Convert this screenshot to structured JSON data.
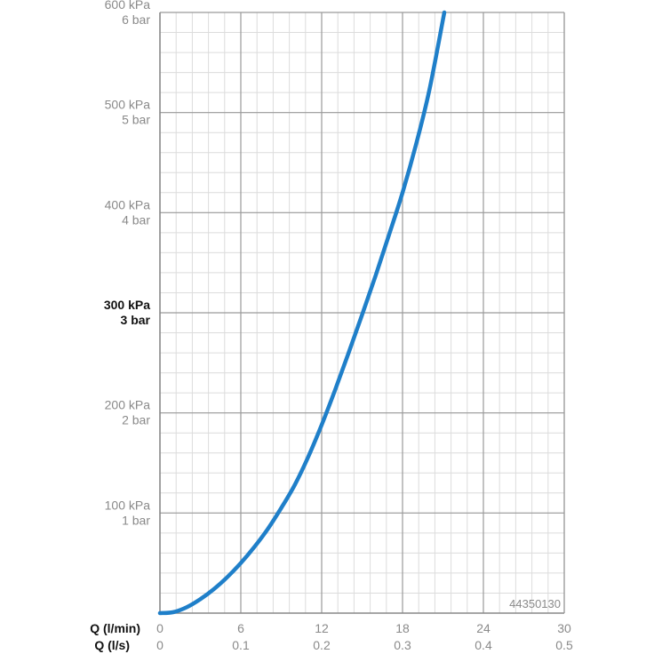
{
  "chart_data": {
    "type": "line",
    "x_axis_primary": {
      "label": "Q (l/min)",
      "ticks": [
        "0",
        "6",
        "12",
        "18",
        "24",
        "30"
      ],
      "range": [
        0,
        30
      ]
    },
    "x_axis_secondary": {
      "label": "Q (l/s)",
      "ticks": [
        "0",
        "0.1",
        "0.2",
        "0.3",
        "0.4",
        "0.5"
      ],
      "range": [
        0,
        0.5
      ]
    },
    "y_axis": {
      "range": [
        0,
        600
      ],
      "unit": "kPa",
      "ticks": [
        {
          "value": 600,
          "kpa": "600 kPa",
          "bar": "6 bar",
          "bold": false
        },
        {
          "value": 500,
          "kpa": "500 kPa",
          "bar": "5 bar",
          "bold": false
        },
        {
          "value": 400,
          "kpa": "400 kPa",
          "bar": "4 bar",
          "bold": false
        },
        {
          "value": 300,
          "kpa": "300 kPa",
          "bar": "3 bar",
          "bold": true
        },
        {
          "value": 200,
          "kpa": "200 kPa",
          "bar": "2 bar",
          "bold": false
        },
        {
          "value": 100,
          "kpa": "100 kPa",
          "bar": "1 bar",
          "bold": false
        }
      ]
    },
    "grid": true,
    "minor_grid_step_x": 1.2,
    "minor_grid_step_y": 20,
    "series": [
      {
        "color": "#1f7fc9",
        "x": [
          0,
          1,
          2,
          3,
          4,
          5,
          6,
          7,
          8,
          9,
          10,
          11,
          12,
          13,
          14,
          15,
          16,
          17,
          18,
          19,
          20,
          21.1
        ],
        "y": [
          0,
          1,
          6,
          14,
          24,
          36,
          50,
          66,
          84,
          105,
          128,
          156,
          188,
          223,
          260,
          298,
          337,
          378,
          420,
          468,
          523,
          600
        ]
      }
    ],
    "annotation": "44350130"
  }
}
